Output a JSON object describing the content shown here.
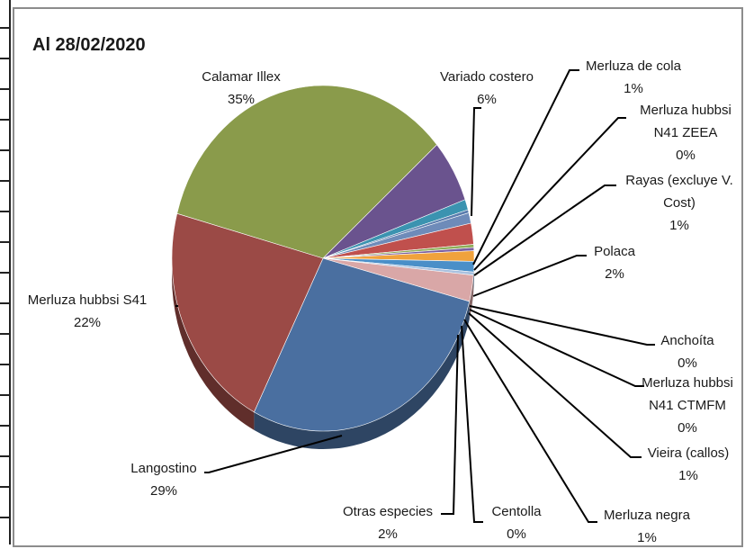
{
  "chart_data": {
    "type": "pie",
    "title": "Al 28/02/2020",
    "three_d": true,
    "legend": "none",
    "slices": [
      {
        "name": "Calamar Illex",
        "value": 35,
        "label": "35%",
        "color": "#8a9b4b"
      },
      {
        "name": "Variado costero",
        "value": 6,
        "label": "6%",
        "color": "#6a538e"
      },
      {
        "name": "Merluza de cola",
        "value": 1,
        "label": "1%",
        "color": "#3b93b0"
      },
      {
        "name": "Merluza hubbsi N41 ZEEA",
        "value": 0.3,
        "label": "0%",
        "color": "#5b7dae"
      },
      {
        "name": "Rayas (excluye V. Cost)",
        "value": 1,
        "label": "1%",
        "color": "#6e8bb9"
      },
      {
        "name": "Polaca",
        "value": 2,
        "label": "2%",
        "color": "#c0504d"
      },
      {
        "name": "Anchoíta",
        "value": 0.3,
        "label": "0%",
        "color": "#8fae5a"
      },
      {
        "name": "Merluza hubbsi N41 CTMFM",
        "value": 0.3,
        "label": "0%",
        "color": "#7b5fa0"
      },
      {
        "name": "Vieira (callos)",
        "value": 1,
        "label": "1%",
        "color": "#f0a23c"
      },
      {
        "name": "Merluza negra",
        "value": 1,
        "label": "1%",
        "color": "#4a8fc8"
      },
      {
        "name": "Centolla",
        "value": 0.3,
        "label": "0%",
        "color": "#a9c1df"
      },
      {
        "name": "Otras especies",
        "value": 2.5,
        "label": "2%",
        "color": "#d9a7a7"
      },
      {
        "name": "Langostino",
        "value": 29,
        "label": "29%",
        "color": "#4a6fa0"
      },
      {
        "name": "Merluza hubbsi S41",
        "value": 22,
        "label": "22%",
        "color": "#9b4a46"
      }
    ],
    "labels": [
      {
        "lines": [
          "Calamar Illex",
          "35%"
        ]
      },
      {
        "lines": [
          "Variado costero",
          "6%"
        ]
      },
      {
        "lines": [
          "Merluza de cola",
          "1%"
        ]
      },
      {
        "lines": [
          "Merluza hubbsi",
          "N41 ZEEA",
          "0%"
        ]
      },
      {
        "lines": [
          "Rayas (excluye V.",
          "Cost)",
          "1%"
        ]
      },
      {
        "lines": [
          "Polaca",
          "2%"
        ]
      },
      {
        "lines": [
          "Anchoíta",
          "0%"
        ]
      },
      {
        "lines": [
          "Merluza hubbsi",
          "N41 CTMFM",
          "0%"
        ]
      },
      {
        "lines": [
          "Vieira (callos)",
          "1%"
        ]
      },
      {
        "lines": [
          "Merluza negra",
          "1%"
        ]
      },
      {
        "lines": [
          "Centolla",
          "0%"
        ]
      },
      {
        "lines": [
          "Otras especies",
          "2%"
        ]
      },
      {
        "lines": [
          "Langostino",
          "29%"
        ]
      },
      {
        "lines": [
          "Merluza hubbsi S41",
          "22%"
        ]
      }
    ]
  }
}
